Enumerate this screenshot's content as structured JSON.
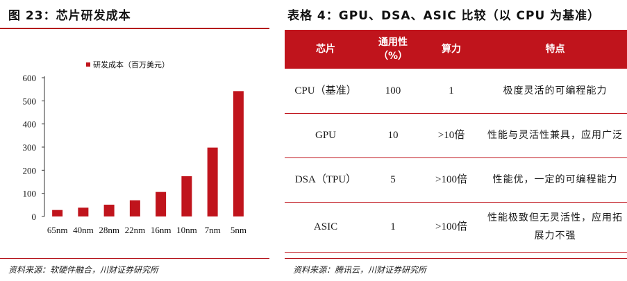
{
  "left": {
    "title": "图 23：芯片研发成本",
    "source": "资料来源：软硬件融合，川财证券研究所"
  },
  "right": {
    "title": "表格 4：GPU、DSA、ASIC 比较（以 CPU 为基准）",
    "source": "资料来源：腾讯云，川财证券研究所",
    "headers": [
      "芯片",
      "通用性（%）",
      "算力",
      "特点"
    ],
    "rows": [
      {
        "chip": "CPU（基准）",
        "generality": "100",
        "compute": "1",
        "feature": "极度灵活的可编程能力"
      },
      {
        "chip": "GPU",
        "generality": "10",
        "compute": ">10倍",
        "feature": "性能与灵活性兼具，应用广泛"
      },
      {
        "chip": "DSA（TPU）",
        "generality": "5",
        "compute": ">100倍",
        "feature": "性能优，一定的可编程能力"
      },
      {
        "chip": "ASIC",
        "generality": "1",
        "compute": ">100倍",
        "feature": "性能极致但无灵活性，应用拓展力不强"
      }
    ]
  },
  "colors": {
    "accent": "#c0141c",
    "bar": "#c0141c"
  },
  "chart_data": {
    "type": "bar",
    "categories": [
      "65nm",
      "40nm",
      "28nm",
      "22nm",
      "16nm",
      "10nm",
      "7nm",
      "5nm"
    ],
    "series": [
      {
        "name": "研发成本（百万美元）",
        "values": [
          28,
          38,
          51,
          70,
          106,
          174,
          298,
          542
        ]
      }
    ],
    "yticks": [
      0,
      100,
      200,
      300,
      400,
      500,
      600
    ],
    "ylim": [
      0,
      600
    ],
    "legend": "top-center",
    "grid": false
  }
}
